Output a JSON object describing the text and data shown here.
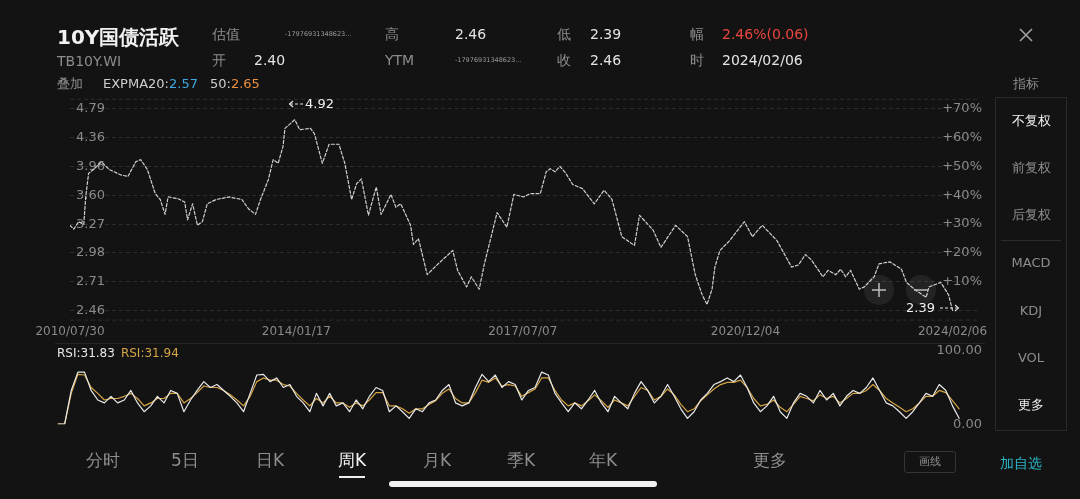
{
  "chart_data": [
    {
      "type": "line",
      "title": "10Y国债活跃",
      "subtitle": "TB10Y.WI",
      "annotations": [
        "估值",
        "-17976931348623...",
        "高",
        "2.46",
        "低",
        "2.39",
        "幅",
        "2.46%(0.06)",
        "开",
        "2.40",
        "YTM",
        "-17976931348623...",
        "收",
        "2.46",
        "时",
        "2024/02/06",
        "叠加",
        "EXPMA20:",
        "2.57",
        "50:",
        "2.65",
        "4.92",
        "2.39"
      ],
      "x": [
        "2010-07-30",
        "2010-08-20",
        "2010-09-17",
        "2010-10-15",
        "2010-10-26",
        "2010-11-11",
        "2010-12-14",
        "2011-01-21",
        "2011-03-06",
        "2011-05-11",
        "2011-06-19",
        "2011-08-02",
        "2011-08-29",
        "2011-10-06",
        "2011-11-19",
        "2011-12-17",
        "2012-01-13",
        "2012-01-30",
        "2012-03-25",
        "2012-05-02",
        "2012-05-18",
        "2012-06-15",
        "2012-07-12",
        "2012-08-09",
        "2012-09-05",
        "2012-10-25",
        "2013-01-05",
        "2013-03-18",
        "2013-04-25",
        "2013-06-02",
        "2013-06-30",
        "2013-08-13",
        "2013-09-09",
        "2013-10-07",
        "2013-11-03",
        "2013-11-14",
        "2014-01-08",
        "2014-02-04",
        "2014-04-06",
        "2014-04-28",
        "2014-06-11",
        "2014-07-19",
        "2014-09-12",
        "2014-10-15",
        "2014-11-22",
        "2014-12-20",
        "2015-01-16",
        "2015-02-24",
        "2015-04-09",
        "2015-05-06",
        "2015-06-30",
        "2015-07-28",
        "2015-08-24",
        "2015-10-18",
        "2015-11-03",
        "2015-12-01",
        "2016-01-19",
        "2016-03-20",
        "2016-06-10",
        "2016-07-07",
        "2016-08-26",
        "2016-09-22",
        "2016-11-05",
        "2016-12-04",
        "2017-01-11",
        "2017-02-13",
        "2017-04-09",
        "2017-05-18",
        "2017-07-11",
        "2017-08-19",
        "2017-10-13",
        "2017-11-15",
        "2017-12-07",
        "2018-01-04",
        "2018-01-31",
        "2018-03-05",
        "2018-04-12",
        "2018-06-06",
        "2018-08-11",
        "2018-10-05",
        "2018-11-18",
        "2019-01-12",
        "2019-03-24",
        "2019-04-21",
        "2019-07-06",
        "2019-08-19",
        "2019-11-09",
        "2020-01-15",
        "2020-02-27",
        "2020-04-06",
        "2020-05-03",
        "2020-05-31",
        "2020-06-16",
        "2020-07-14",
        "2020-09-07",
        "2020-11-28",
        "2021-01-12",
        "2021-03-08",
        "2021-05-29",
        "2021-08-19",
        "2021-09-27",
        "2021-11-04",
        "2021-12-07",
        "2022-02-11",
        "2022-03-11",
        "2022-04-24",
        "2022-05-21",
        "2022-06-18",
        "2022-07-15",
        "2022-09-02",
        "2022-09-30",
        "2022-11-24",
        "2022-12-21",
        "2023-02-20",
        "2023-04-26",
        "2023-05-24",
        "2023-07-07",
        "2023-09-11",
        "2023-09-27",
        "2023-12-02",
        "2024-01-15",
        "2024-02-06"
      ],
      "series": [
        {
          "color": "#d0d0d0",
          "values": [
            3.26,
            3.22,
            3.3,
            3.27,
            3.58,
            3.87,
            3.93,
            4.02,
            3.92,
            3.85,
            3.83,
            4.02,
            4.05,
            3.92,
            3.62,
            3.55,
            3.38,
            3.58,
            3.56,
            3.52,
            3.32,
            3.5,
            3.26,
            3.3,
            3.5,
            3.55,
            3.58,
            3.55,
            3.44,
            3.38,
            3.55,
            3.79,
            4.05,
            4.0,
            4.23,
            4.49,
            4.62,
            4.47,
            4.49,
            4.41,
            4.0,
            4.26,
            4.26,
            4.0,
            3.55,
            3.74,
            3.8,
            3.37,
            3.7,
            3.38,
            3.61,
            3.46,
            3.5,
            3.26,
            3.06,
            3.12,
            2.77,
            2.87,
            3.0,
            2.81,
            2.66,
            2.75,
            2.64,
            2.87,
            3.14,
            3.4,
            3.24,
            3.61,
            3.58,
            3.62,
            3.62,
            3.89,
            3.93,
            3.89,
            3.96,
            3.87,
            3.73,
            3.68,
            3.5,
            3.66,
            3.55,
            3.14,
            3.05,
            3.37,
            3.21,
            3.03,
            3.26,
            3.14,
            2.77,
            2.59,
            2.51,
            2.64,
            2.84,
            3.0,
            3.1,
            3.3,
            3.14,
            3.26,
            3.1,
            2.84,
            2.86,
            2.96,
            2.91,
            2.75,
            2.81,
            2.77,
            2.82,
            2.75,
            2.81,
            2.64,
            2.66,
            2.75,
            2.87,
            2.89,
            2.82,
            2.7,
            2.64,
            2.57,
            2.66,
            2.7,
            2.59,
            2.46
          ]
        }
      ],
      "xlim": [
        "2010-07-30",
        "2024-07-03"
      ],
      "xticks": [
        {
          "value": "2010-07-30",
          "label": "2010/07/30"
        },
        {
          "value": "2014-01-17",
          "label": "2014/01/17"
        },
        {
          "value": "2017-07-07",
          "label": "2017/07/07"
        },
        {
          "value": "2020-12-04",
          "label": "2020/12/04"
        },
        {
          "value": "2024-02-06",
          "label": "2024/02/06"
        }
      ],
      "ylim": [
        2.38,
        4.95
      ],
      "yticks": [
        2.46,
        2.71,
        2.98,
        3.27,
        {
          "value": 3.6,
          "label": "3.60"
        },
        3.96,
        4.36,
        4.79
      ],
      "y2lim": [
        -3.5,
        73.5
      ],
      "y2ticks": [
        {
          "value": 10,
          "label": "+10%"
        },
        {
          "value": 20,
          "label": "+20%"
        },
        {
          "value": 30,
          "label": "+30%"
        },
        {
          "value": 40,
          "label": "+40%"
        },
        {
          "value": 50,
          "label": "+50%"
        },
        {
          "value": 60,
          "label": "+60%"
        },
        {
          "value": 70,
          "label": "+70%"
        }
      ],
      "log": "y",
      "grid": "y",
      "marker": "none",
      "line_style": "dashed"
    },
    {
      "type": "line",
      "categories": [
        null,
        null,
        null,
        null,
        null,
        null,
        null,
        null,
        null,
        null,
        null,
        null,
        null,
        null,
        null,
        null,
        null,
        null,
        null,
        null,
        null,
        null,
        null,
        null,
        null,
        null,
        null,
        null,
        null,
        null,
        null,
        null,
        null,
        null,
        null,
        null,
        null,
        null,
        null,
        null,
        null,
        null,
        null,
        null,
        null,
        null,
        null,
        null,
        null,
        null,
        null,
        null,
        null,
        null,
        null,
        null,
        null,
        null,
        null,
        null,
        null,
        null,
        null,
        null,
        null,
        null,
        null,
        null,
        null,
        null,
        null,
        null,
        null,
        null,
        null,
        null,
        null,
        null,
        null,
        null,
        null,
        null,
        null,
        null,
        null,
        null,
        null,
        null,
        null,
        null,
        null,
        null,
        null,
        null,
        null,
        null,
        null,
        null,
        null,
        null,
        null,
        null,
        null,
        null,
        null,
        null,
        null,
        null,
        null,
        null,
        null,
        null,
        null,
        null,
        null,
        null,
        null,
        null,
        null,
        null,
        null,
        null,
        null,
        null,
        null,
        null,
        null,
        null,
        null,
        null,
        null,
        null,
        null,
        null,
        null,
        null,
        null,
        null,
        null,
        null
      ],
      "series": [
        {
          "name": "RSI:31.83",
          "color": "#e8e8e8",
          "values": [
            0,
            0,
            46,
            71,
            71,
            46,
            33,
            29,
            38,
            29,
            33,
            46,
            29,
            17,
            25,
            38,
            29,
            46,
            42,
            17,
            33,
            46,
            58,
            50,
            54,
            46,
            38,
            29,
            17,
            42,
            67,
            68,
            58,
            63,
            50,
            54,
            38,
            29,
            17,
            42,
            25,
            42,
            25,
            29,
            17,
            33,
            21,
            38,
            50,
            46,
            17,
            25,
            17,
            8,
            21,
            17,
            29,
            33,
            46,
            54,
            29,
            25,
            29,
            50,
            68,
            58,
            67,
            50,
            58,
            54,
            33,
            46,
            50,
            71,
            67,
            42,
            29,
            17,
            29,
            21,
            33,
            46,
            29,
            17,
            38,
            29,
            21,
            42,
            58,
            46,
            29,
            38,
            54,
            38,
            21,
            8,
            17,
            33,
            42,
            54,
            58,
            63,
            58,
            67,
            50,
            29,
            17,
            25,
            38,
            17,
            8,
            29,
            42,
            38,
            29,
            46,
            33,
            42,
            25,
            38,
            46,
            42,
            50,
            63,
            46,
            29,
            25,
            17,
            8,
            17,
            29,
            42,
            38,
            54,
            46,
            25,
            8,
            null,
            null,
            null
          ]
        },
        {
          "name": "RSI:31.94",
          "color": "#d6a544",
          "values": [
            0,
            0,
            42,
            68,
            67,
            50,
            42,
            33,
            35,
            35,
            38,
            42,
            35,
            25,
            29,
            35,
            35,
            42,
            42,
            29,
            35,
            43,
            52,
            50,
            50,
            46,
            40,
            33,
            25,
            38,
            58,
            63,
            60,
            60,
            54,
            52,
            42,
            33,
            25,
            35,
            29,
            38,
            29,
            29,
            23,
            29,
            25,
            33,
            43,
            43,
            25,
            25,
            21,
            15,
            21,
            21,
            27,
            32,
            42,
            48,
            35,
            29,
            29,
            43,
            60,
            57,
            63,
            52,
            54,
            52,
            38,
            43,
            48,
            63,
            63,
            46,
            33,
            25,
            29,
            25,
            32,
            40,
            32,
            23,
            33,
            29,
            25,
            38,
            50,
            46,
            33,
            38,
            48,
            40,
            27,
            17,
            21,
            32,
            40,
            48,
            54,
            57,
            57,
            60,
            50,
            35,
            25,
            27,
            33,
            23,
            17,
            27,
            38,
            35,
            32,
            40,
            35,
            38,
            29,
            35,
            42,
            42,
            46,
            54,
            46,
            35,
            29,
            23,
            17,
            21,
            29,
            38,
            38,
            46,
            43,
            32,
            21,
            null,
            null,
            null
          ]
        }
      ],
      "ylim": [
        0,
        100
      ],
      "yticks": [
        {
          "value": 0,
          "label": "0.00"
        },
        {
          "value": 100,
          "label": "100.00"
        }
      ],
      "legend": "top left",
      "marker": "none",
      "line_style": "solid"
    },
    {
      "type": "other",
      "annotations": [
        "指标",
        "不复权",
        "前复权",
        "后复权",
        "MACD",
        "KDJ",
        "VOL",
        "更多",
        "分时",
        "5日",
        "日K",
        "周K",
        "月K",
        "季K",
        "年K",
        "更多",
        "画线",
        "加自选"
      ]
    }
  ]
}
